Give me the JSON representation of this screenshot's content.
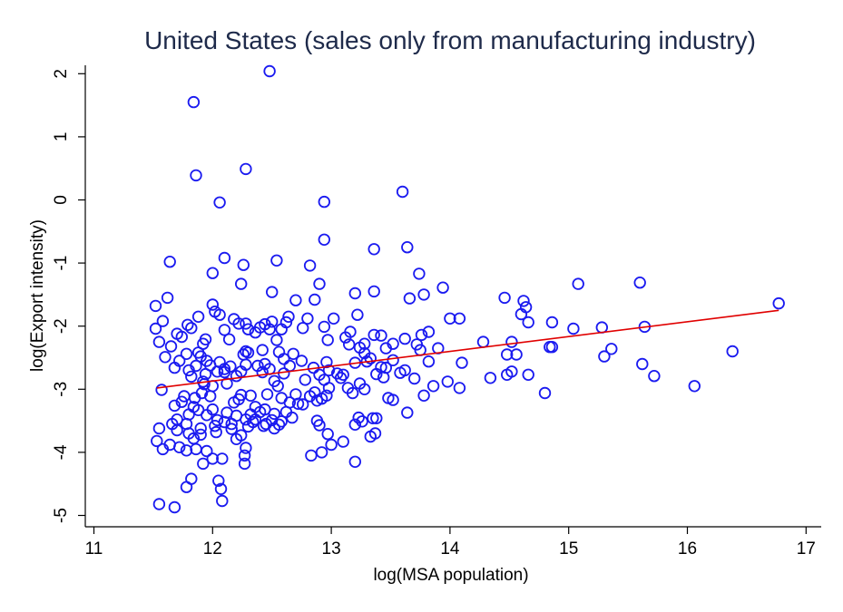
{
  "chart_data": {
    "type": "scatter",
    "title": "United States (sales only from manufacturing industry)",
    "xlabel": "log(MSA population)",
    "ylabel": "log(Export intensity)",
    "xlim": [
      11,
      17
    ],
    "ylim": [
      -5,
      2
    ],
    "xticks": [
      11,
      12,
      13,
      14,
      15,
      16,
      17
    ],
    "yticks": [
      -5,
      -4,
      -3,
      -2,
      -1,
      0,
      1,
      2
    ],
    "grid": false,
    "legend": "none",
    "colors": {
      "points": "#1a1af0",
      "fit_line": "#e00000",
      "title": "#1e2a4a"
    },
    "fit_line": {
      "x": [
        11.53,
        16.77
      ],
      "y": [
        -2.98,
        -1.75
      ]
    },
    "points": [
      [
        11.55,
        -4.82
      ],
      [
        11.68,
        -4.87
      ],
      [
        11.78,
        -4.55
      ],
      [
        11.82,
        -4.42
      ],
      [
        12.05,
        -4.45
      ],
      [
        12.07,
        -4.58
      ],
      [
        12.08,
        -4.77
      ],
      [
        12.27,
        -4.18
      ],
      [
        12.27,
        -4.05
      ],
      [
        12.28,
        -3.93
      ],
      [
        11.53,
        -3.82
      ],
      [
        11.58,
        -3.95
      ],
      [
        11.64,
        -3.88
      ],
      [
        11.7,
        -3.65
      ],
      [
        11.72,
        -3.92
      ],
      [
        11.78,
        -3.97
      ],
      [
        11.8,
        -3.7
      ],
      [
        11.84,
        -3.78
      ],
      [
        11.86,
        -3.95
      ],
      [
        11.9,
        -3.72
      ],
      [
        11.92,
        -4.18
      ],
      [
        11.95,
        -3.98
      ],
      [
        12.0,
        -4.1
      ],
      [
        12.03,
        -3.68
      ],
      [
        12.08,
        -4.1
      ],
      [
        12.16,
        -3.63
      ],
      [
        12.2,
        -3.79
      ],
      [
        12.24,
        -3.73
      ],
      [
        12.32,
        -3.4
      ],
      [
        12.43,
        -3.58
      ],
      [
        12.45,
        -3.55
      ],
      [
        12.5,
        -3.49
      ],
      [
        12.52,
        -3.62
      ],
      [
        12.58,
        -3.51
      ],
      [
        12.67,
        -3.45
      ],
      [
        12.83,
        -4.05
      ],
      [
        12.9,
        -3.57
      ],
      [
        12.92,
        -4.0
      ],
      [
        12.97,
        -3.71
      ],
      [
        13.0,
        -3.88
      ],
      [
        13.1,
        -3.83
      ],
      [
        13.2,
        -4.15
      ],
      [
        13.23,
        -3.45
      ],
      [
        13.26,
        -3.51
      ],
      [
        13.33,
        -3.75
      ],
      [
        13.35,
        -3.46
      ],
      [
        13.38,
        -3.46
      ],
      [
        13.37,
        -3.7
      ],
      [
        13.2,
        -3.56
      ],
      [
        11.55,
        -3.62
      ],
      [
        11.57,
        -3.01
      ],
      [
        11.66,
        -3.55
      ],
      [
        11.68,
        -3.26
      ],
      [
        11.7,
        -3.48
      ],
      [
        11.74,
        -3.2
      ],
      [
        11.76,
        -3.11
      ],
      [
        11.78,
        -3.55
      ],
      [
        11.8,
        -3.4
      ],
      [
        11.84,
        -3.28
      ],
      [
        11.85,
        -3.14
      ],
      [
        11.88,
        -3.33
      ],
      [
        11.9,
        -3.62
      ],
      [
        11.91,
        -3.06
      ],
      [
        11.93,
        -2.92
      ],
      [
        11.95,
        -3.41
      ],
      [
        11.98,
        -3.11
      ],
      [
        12.0,
        -3.32
      ],
      [
        12.02,
        -3.58
      ],
      [
        12.04,
        -3.49
      ],
      [
        12.1,
        -3.52
      ],
      [
        12.12,
        -3.37
      ],
      [
        12.16,
        -3.55
      ],
      [
        12.18,
        -3.21
      ],
      [
        12.2,
        -3.42
      ],
      [
        12.22,
        -3.16
      ],
      [
        12.24,
        -3.09
      ],
      [
        12.28,
        -3.48
      ],
      [
        12.32,
        -3.1
      ],
      [
        12.36,
        -3.28
      ],
      [
        12.4,
        -3.36
      ],
      [
        12.44,
        -3.32
      ],
      [
        12.46,
        -3.08
      ],
      [
        12.52,
        -3.39
      ],
      [
        12.55,
        -2.95
      ],
      [
        12.58,
        -3.14
      ],
      [
        12.62,
        -3.36
      ],
      [
        12.65,
        -3.21
      ],
      [
        12.7,
        -3.08
      ],
      [
        12.72,
        -3.23
      ],
      [
        12.76,
        -3.24
      ],
      [
        12.82,
        -3.11
      ],
      [
        12.86,
        -3.05
      ],
      [
        12.88,
        -3.18
      ],
      [
        12.92,
        -3.15
      ],
      [
        12.96,
        -3.1
      ],
      [
        12.98,
        -2.98
      ],
      [
        13.08,
        -2.82
      ],
      [
        13.14,
        -2.98
      ],
      [
        13.18,
        -3.06
      ],
      [
        13.24,
        -2.91
      ],
      [
        13.28,
        -3.0
      ],
      [
        13.42,
        -2.65
      ],
      [
        13.48,
        -3.14
      ],
      [
        13.52,
        -3.17
      ],
      [
        13.64,
        -3.37
      ],
      [
        13.7,
        -2.83
      ],
      [
        13.78,
        -3.1
      ],
      [
        13.86,
        -2.95
      ],
      [
        13.98,
        -2.88
      ],
      [
        14.08,
        -2.98
      ],
      [
        13.82,
        -2.56
      ],
      [
        13.75,
        -2.38
      ],
      [
        13.62,
        -2.7
      ],
      [
        13.58,
        -2.74
      ],
      [
        13.52,
        -2.54
      ],
      [
        13.46,
        -2.66
      ],
      [
        13.44,
        -2.81
      ],
      [
        13.38,
        -2.76
      ],
      [
        13.33,
        -2.51
      ],
      [
        13.3,
        -2.56
      ],
      [
        13.28,
        -2.43
      ],
      [
        13.24,
        -2.34
      ],
      [
        13.2,
        -2.58
      ],
      [
        13.15,
        -2.29
      ],
      [
        13.1,
        -2.77
      ],
      [
        13.05,
        -2.75
      ],
      [
        12.98,
        -2.7
      ],
      [
        12.96,
        -2.57
      ],
      [
        12.94,
        -2.85
      ],
      [
        12.9,
        -2.77
      ],
      [
        12.85,
        -2.66
      ],
      [
        12.78,
        -2.85
      ],
      [
        12.75,
        -2.55
      ],
      [
        12.68,
        -2.44
      ],
      [
        12.65,
        -2.63
      ],
      [
        12.6,
        -2.52
      ],
      [
        12.56,
        -2.41
      ],
      [
        12.52,
        -2.87
      ],
      [
        12.48,
        -2.68
      ],
      [
        12.44,
        -2.6
      ],
      [
        12.42,
        -2.38
      ],
      [
        12.38,
        -2.63
      ],
      [
        12.3,
        -2.42
      ],
      [
        12.28,
        -2.61
      ],
      [
        12.26,
        -2.45
      ],
      [
        12.24,
        -2.72
      ],
      [
        12.2,
        -2.79
      ],
      [
        12.15,
        -2.64
      ],
      [
        12.12,
        -2.91
      ],
      [
        12.1,
        -2.68
      ],
      [
        12.06,
        -2.57
      ],
      [
        12.04,
        -2.72
      ],
      [
        12.0,
        -2.95
      ],
      [
        11.98,
        -2.62
      ],
      [
        11.95,
        -2.55
      ],
      [
        11.94,
        -2.76
      ],
      [
        11.92,
        -2.88
      ],
      [
        11.9,
        -2.48
      ],
      [
        11.88,
        -2.42
      ],
      [
        11.86,
        -2.63
      ],
      [
        11.82,
        -2.8
      ],
      [
        11.8,
        -2.7
      ],
      [
        11.78,
        -2.44
      ],
      [
        11.72,
        -2.55
      ],
      [
        11.68,
        -2.66
      ],
      [
        11.65,
        -2.32
      ],
      [
        11.6,
        -2.49
      ],
      [
        11.55,
        -2.25
      ],
      [
        11.52,
        -2.04
      ],
      [
        11.58,
        -1.92
      ],
      [
        11.62,
        -1.55
      ],
      [
        11.64,
        -0.98
      ],
      [
        11.7,
        -2.12
      ],
      [
        11.74,
        -2.17
      ],
      [
        11.79,
        -1.98
      ],
      [
        11.82,
        -2.03
      ],
      [
        11.88,
        -1.85
      ],
      [
        11.92,
        -2.28
      ],
      [
        11.94,
        -2.21
      ],
      [
        12.0,
        -1.66
      ],
      [
        12.02,
        -1.77
      ],
      [
        12.06,
        -1.82
      ],
      [
        12.1,
        -2.06
      ],
      [
        12.14,
        -2.21
      ],
      [
        12.18,
        -1.89
      ],
      [
        12.22,
        -1.96
      ],
      [
        12.24,
        -1.33
      ],
      [
        12.28,
        -1.96
      ],
      [
        12.3,
        -2.05
      ],
      [
        12.36,
        -2.1
      ],
      [
        12.4,
        -2.02
      ],
      [
        12.44,
        -1.97
      ],
      [
        12.48,
        -2.05
      ],
      [
        12.5,
        -1.93
      ],
      [
        12.54,
        -2.22
      ],
      [
        12.58,
        -2.05
      ],
      [
        12.62,
        -1.94
      ],
      [
        12.64,
        -1.85
      ],
      [
        12.7,
        -1.59
      ],
      [
        12.76,
        -2.03
      ],
      [
        12.8,
        -1.88
      ],
      [
        12.86,
        -1.58
      ],
      [
        12.9,
        -1.33
      ],
      [
        12.94,
        -2.01
      ],
      [
        12.97,
        -2.22
      ],
      [
        13.02,
        -1.88
      ],
      [
        13.12,
        -2.18
      ],
      [
        13.16,
        -2.09
      ],
      [
        13.22,
        -1.82
      ],
      [
        13.28,
        -2.28
      ],
      [
        13.36,
        -2.14
      ],
      [
        13.42,
        -2.15
      ],
      [
        13.46,
        -2.35
      ],
      [
        13.52,
        -2.28
      ],
      [
        13.62,
        -2.2
      ],
      [
        13.66,
        -1.56
      ],
      [
        13.72,
        -2.29
      ],
      [
        13.76,
        -2.14
      ],
      [
        13.82,
        -2.09
      ],
      [
        13.9,
        -2.35
      ],
      [
        13.94,
        -1.39
      ],
      [
        14.0,
        -1.88
      ],
      [
        14.08,
        -1.88
      ],
      [
        14.1,
        -2.58
      ],
      [
        14.28,
        -2.25
      ],
      [
        14.34,
        -2.82
      ],
      [
        14.46,
        -1.55
      ],
      [
        14.48,
        -2.45
      ],
      [
        14.52,
        -2.25
      ],
      [
        14.56,
        -2.45
      ],
      [
        14.6,
        -1.81
      ],
      [
        14.62,
        -1.6
      ],
      [
        14.64,
        -1.7
      ],
      [
        14.66,
        -1.94
      ],
      [
        14.48,
        -2.77
      ],
      [
        14.52,
        -2.72
      ],
      [
        14.66,
        -2.77
      ],
      [
        14.8,
        -3.06
      ],
      [
        14.84,
        -2.33
      ],
      [
        14.86,
        -2.33
      ],
      [
        14.86,
        -1.94
      ],
      [
        15.04,
        -2.04
      ],
      [
        15.08,
        -1.33
      ],
      [
        15.28,
        -2.02
      ],
      [
        15.3,
        -2.48
      ],
      [
        15.36,
        -2.36
      ],
      [
        15.6,
        -1.31
      ],
      [
        15.62,
        -2.6
      ],
      [
        15.64,
        -2.01
      ],
      [
        15.72,
        -2.79
      ],
      [
        16.06,
        -2.95
      ],
      [
        16.38,
        -2.4
      ],
      [
        16.77,
        -1.64
      ],
      [
        11.52,
        -1.68
      ],
      [
        12.0,
        -1.16
      ],
      [
        12.1,
        -0.92
      ],
      [
        12.26,
        -1.03
      ],
      [
        12.54,
        -0.96
      ],
      [
        12.82,
        -1.04
      ],
      [
        12.94,
        -0.63
      ],
      [
        13.36,
        -0.78
      ],
      [
        13.64,
        -0.75
      ],
      [
        13.74,
        -1.17
      ],
      [
        13.78,
        -1.5
      ],
      [
        13.36,
        -1.45
      ],
      [
        13.2,
        -1.48
      ],
      [
        12.5,
        -1.46
      ],
      [
        12.28,
        -2.4
      ],
      [
        12.06,
        -0.04
      ],
      [
        12.28,
        0.49
      ],
      [
        11.86,
        0.39
      ],
      [
        12.94,
        -0.03
      ],
      [
        13.6,
        0.13
      ],
      [
        11.84,
        1.55
      ],
      [
        12.48,
        2.04
      ],
      [
        12.1,
        -2.73
      ],
      [
        12.42,
        -2.73
      ],
      [
        12.6,
        -2.75
      ],
      [
        12.3,
        -3.59
      ],
      [
        12.34,
        -3.52
      ],
      [
        12.88,
        -3.5
      ],
      [
        12.36,
        -3.48
      ],
      [
        12.56,
        -3.56
      ]
    ]
  }
}
